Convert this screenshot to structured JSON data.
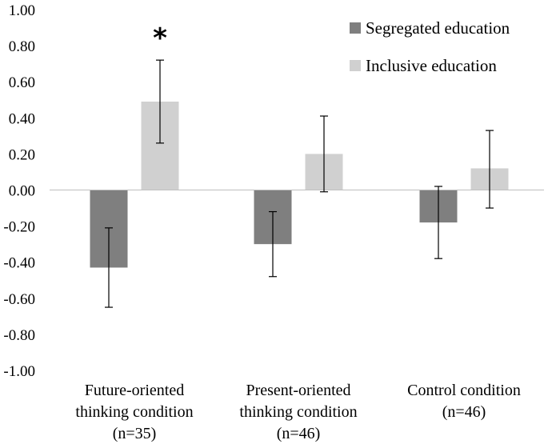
{
  "chart_data": {
    "type": "bar",
    "categories": [
      [
        "Future-oriented",
        "thinking condition",
        "(n=35)"
      ],
      [
        "Present-oriented",
        "thinking condition",
        "(n=46)"
      ],
      [
        "Control condition",
        "(n=46)"
      ]
    ],
    "series": [
      {
        "name": "Segregated education",
        "color": "#7f7f7f",
        "values": [
          -0.43,
          -0.3,
          -0.18
        ],
        "error_low": [
          -0.65,
          -0.48,
          -0.38
        ],
        "error_high": [
          -0.21,
          -0.12,
          0.02
        ]
      },
      {
        "name": "Inclusive education",
        "color": "#d0d0d0",
        "values": [
          0.49,
          0.2,
          0.12
        ],
        "error_low": [
          0.26,
          -0.01,
          -0.1
        ],
        "error_high": [
          0.72,
          0.41,
          0.33
        ]
      }
    ],
    "ylim": [
      -1.0,
      1.0
    ],
    "yticks": [
      "1.00",
      "0.80",
      "0.60",
      "0.40",
      "0.20",
      "0.00",
      "-0.20",
      "-0.40",
      "-0.60",
      "-0.80",
      "-1.00"
    ],
    "legend_position": "top-right",
    "grid": false,
    "annotations": [
      {
        "text": "*",
        "category_index": 0,
        "series_index": 1
      }
    ]
  }
}
